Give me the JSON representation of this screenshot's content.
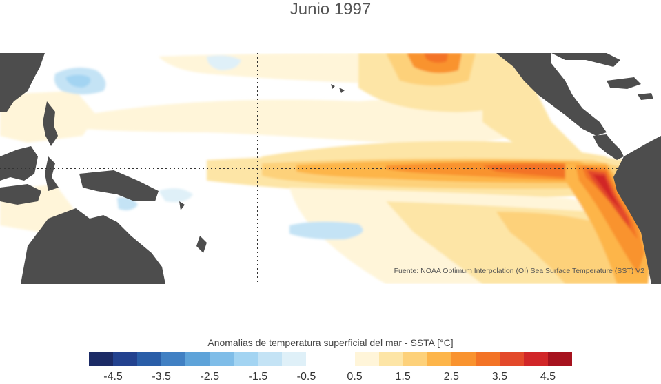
{
  "title": "Junio 1997",
  "source": "Fuente: NOAA Optimum Interpolation (OI) Sea Surface Temperature (SST) V2",
  "colorbar": {
    "title": "Anomalias de temperatura superficial del mar - SSTA  [°C]",
    "range": [
      -5,
      5
    ],
    "step": 0.5,
    "colors": [
      "#1c2b66",
      "#23428f",
      "#2a5ea8",
      "#4180c3",
      "#5ea3d9",
      "#7fbde8",
      "#a3d4f2",
      "#c4e3f5",
      "#dff0f8",
      "#ffffff",
      "#ffffff",
      "#fff5d9",
      "#fde5a6",
      "#fdd17a",
      "#fdb54a",
      "#f9932f",
      "#f37326",
      "#e3492a",
      "#d12628",
      "#a6121e"
    ],
    "ticks": [
      "-4.5",
      "-3.5",
      "-2.5",
      "-1.5",
      "-0.5",
      "0.5",
      "1.5",
      "2.5",
      "3.5",
      "4.5"
    ]
  },
  "map": {
    "land_color": "#4d4d4d",
    "ocean_color": "#ffffff",
    "grid_line_color": "#333333"
  }
}
